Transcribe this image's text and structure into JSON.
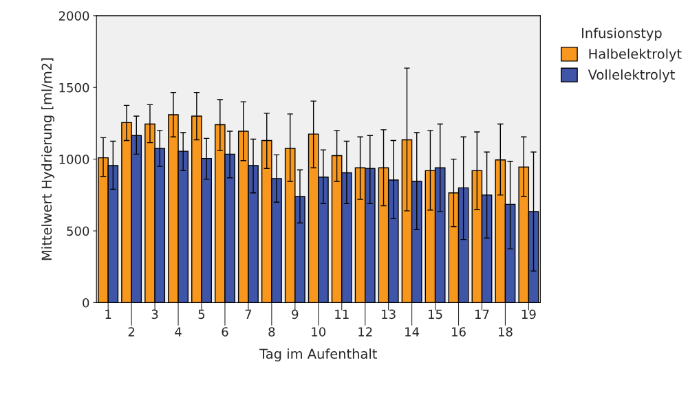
{
  "chart_data": {
    "type": "bar",
    "xlabel": "Tag im Aufenthalt",
    "ylabel": "Mittelwert Hydrierung [ml/m2]",
    "legend_title": "Infusionstyp",
    "categories": [
      "1",
      "2",
      "3",
      "4",
      "5",
      "6",
      "7",
      "8",
      "9",
      "10",
      "11",
      "12",
      "13",
      "14",
      "15",
      "16",
      "17",
      "18",
      "19"
    ],
    "series": [
      {
        "name": "Halbelektrolyt",
        "color": "#f7971d",
        "values": [
          1010,
          1255,
          1245,
          1310,
          1300,
          1240,
          1195,
          1130,
          1075,
          1175,
          1025,
          940,
          940,
          1135,
          920,
          765,
          920,
          995,
          945
        ],
        "errors": [
          [
            880,
            1150
          ],
          [
            1130,
            1375
          ],
          [
            1115,
            1380
          ],
          [
            1155,
            1465
          ],
          [
            1135,
            1465
          ],
          [
            1060,
            1415
          ],
          [
            990,
            1400
          ],
          [
            935,
            1320
          ],
          [
            845,
            1315
          ],
          [
            940,
            1405
          ],
          [
            845,
            1200
          ],
          [
            720,
            1155
          ],
          [
            675,
            1205
          ],
          [
            640,
            1635
          ],
          [
            645,
            1200
          ],
          [
            530,
            1000
          ],
          [
            650,
            1190
          ],
          [
            750,
            1245
          ],
          [
            740,
            1155
          ]
        ]
      },
      {
        "name": "Vollelektrolyt",
        "color": "#3f56a8",
        "values": [
          955,
          1165,
          1075,
          1055,
          1005,
          1035,
          955,
          865,
          740,
          875,
          905,
          935,
          855,
          845,
          940,
          800,
          750,
          685,
          635
        ],
        "errors": [
          [
            790,
            1125
          ],
          [
            1035,
            1300
          ],
          [
            950,
            1200
          ],
          [
            920,
            1185
          ],
          [
            860,
            1145
          ],
          [
            870,
            1195
          ],
          [
            765,
            1140
          ],
          [
            700,
            1030
          ],
          [
            555,
            925
          ],
          [
            690,
            1065
          ],
          [
            690,
            1125
          ],
          [
            690,
            1165
          ],
          [
            585,
            1130
          ],
          [
            510,
            1185
          ],
          [
            635,
            1245
          ],
          [
            440,
            1155
          ],
          [
            450,
            1050
          ],
          [
            375,
            985
          ],
          [
            220,
            1050
          ]
        ]
      }
    ],
    "ylim": [
      0,
      2000
    ],
    "yticks": [
      0,
      500,
      1000,
      1500,
      2000
    ],
    "grid": false,
    "legend": "top right"
  }
}
